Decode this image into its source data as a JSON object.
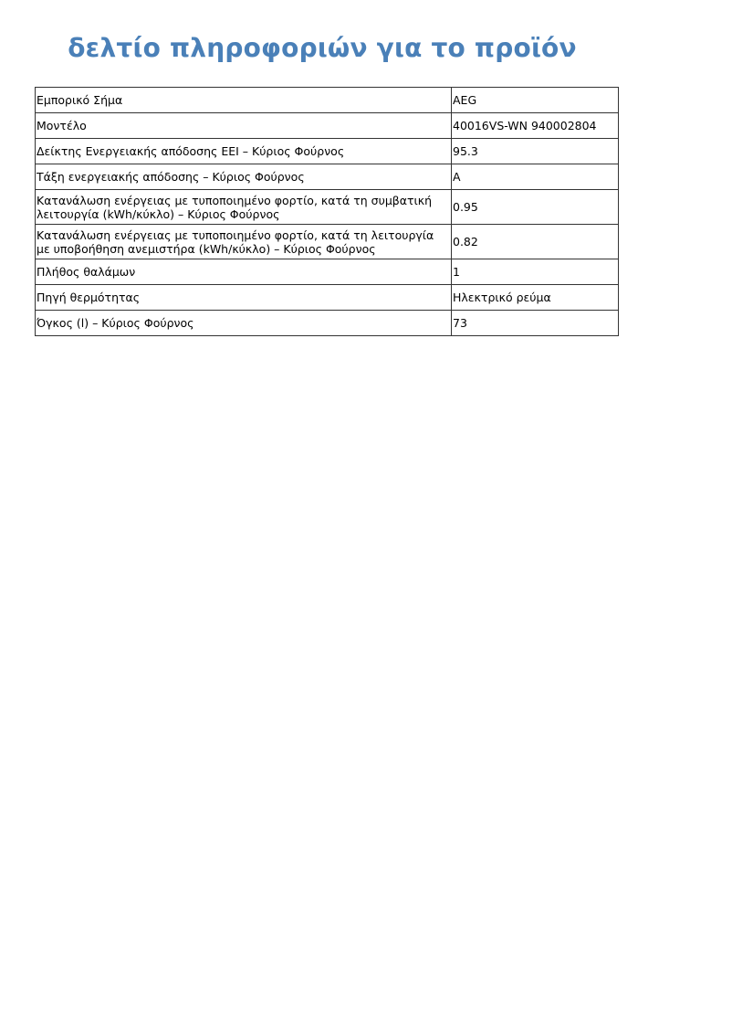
{
  "title": "δελτίο πληροφοριών για το προϊόν",
  "rows": [
    {
      "label": "Εμπορικό Σήμα",
      "value": "AEG"
    },
    {
      "label": "Μοντέλο",
      "value": "40016VS-WN 940002804"
    },
    {
      "label": "Δείκτης Ενεργειακής απόδοσης EEI – Κύριος Φούρνος",
      "value": "95.3"
    },
    {
      "label": "Τάξη ενεργειακής απόδοσης – Κύριος Φούρνος",
      "value": "A"
    },
    {
      "label": "Κατανάλωση ενέργειας με τυποποιημένο φορτίο, κατά τη συμβατική λειτουργία (kWh/κύκλο) – Κύριος Φούρνος",
      "value": "0.95"
    },
    {
      "label": "Κατανάλωση ενέργειας με τυποποιημένο φορτίο, κατά τη λειτουργία με υποβοήθηση ανεμιστήρα (kWh/κύκλο) – Κύριος Φούρνος",
      "value": "0.82"
    },
    {
      "label": "Πλήθος θαλάμων",
      "value": "1"
    },
    {
      "label": "Πηγή θερμότητας",
      "value": "Ηλεκτρικό ρεύμα"
    },
    {
      "label": "Όγκος (l) – Κύριος Φούρνος",
      "value": "73"
    }
  ]
}
